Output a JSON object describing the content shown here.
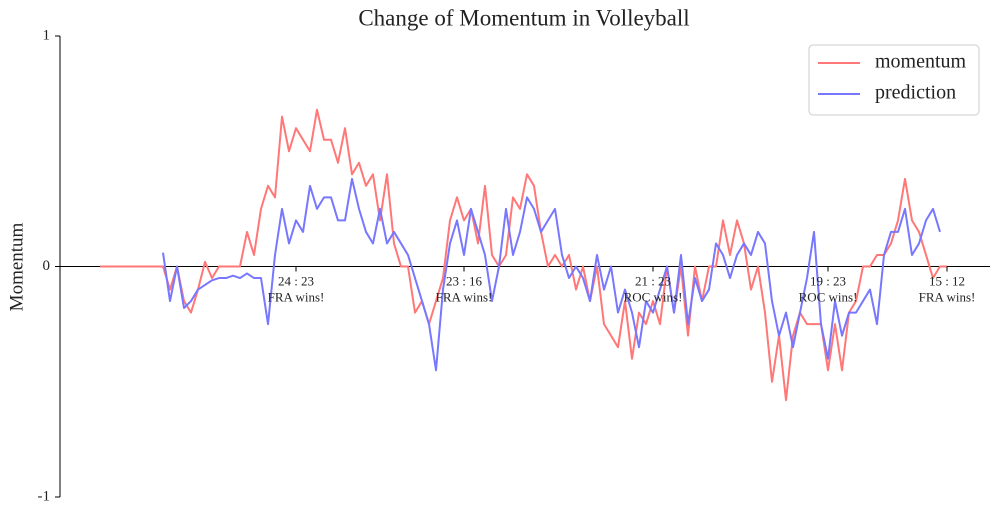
{
  "chart_data": {
    "type": "line",
    "title": "Change of Momentum in Volleyball",
    "y_label": "Momentum",
    "ylim": [
      -1,
      1
    ],
    "yticks": [
      -1,
      0,
      1
    ],
    "legend": "upper right",
    "series": [
      {
        "name": "momentum",
        "color": "#ff7777",
        "values": [
          0,
          0,
          0,
          0,
          0,
          0,
          0,
          0,
          0,
          0,
          -0.1,
          0,
          -0.15,
          -0.2,
          -0.1,
          0.02,
          -0.05,
          0,
          0,
          0,
          0,
          0.15,
          0.05,
          0.25,
          0.35,
          0.3,
          0.65,
          0.5,
          0.6,
          0.55,
          0.5,
          0.68,
          0.55,
          0.55,
          0.45,
          0.6,
          0.4,
          0.45,
          0.35,
          0.4,
          0.2,
          0.4,
          0.1,
          0,
          0,
          -0.2,
          -0.15,
          -0.25,
          -0.15,
          -0.05,
          0.2,
          0.3,
          0.2,
          0.25,
          0.1,
          0.35,
          0.05,
          0,
          0.05,
          0.3,
          0.25,
          0.4,
          0.35,
          0.15,
          0,
          0.05,
          0,
          0.05,
          -0.1,
          0,
          -0.15,
          0,
          -0.25,
          -0.3,
          -0.35,
          -0.15,
          -0.4,
          -0.2,
          -0.25,
          -0.15,
          -0.25,
          0,
          -0.2,
          0,
          -0.3,
          0,
          -0.15,
          0,
          0,
          0.2,
          0.05,
          0.2,
          0.1,
          -0.1,
          0,
          -0.2,
          -0.5,
          -0.3,
          -0.58,
          -0.3,
          -0.2,
          -0.25,
          -0.25,
          -0.25,
          -0.45,
          -0.25,
          -0.45,
          -0.2,
          -0.15,
          0,
          0,
          0.05,
          0.05,
          0.1,
          0.2,
          0.38,
          0.2,
          0.15,
          0.05,
          -0.05,
          0,
          0
        ]
      },
      {
        "name": "prediction",
        "color": "#7777ff",
        "values": [
          null,
          null,
          null,
          null,
          null,
          null,
          null,
          null,
          null,
          0.06,
          -0.15,
          0,
          -0.18,
          -0.15,
          -0.1,
          -0.08,
          -0.06,
          -0.05,
          -0.05,
          -0.04,
          -0.05,
          -0.03,
          -0.05,
          -0.05,
          -0.25,
          0.05,
          0.25,
          0.1,
          0.2,
          0.15,
          0.35,
          0.25,
          0.3,
          0.3,
          0.2,
          0.2,
          0.38,
          0.25,
          0.15,
          0.1,
          0.25,
          0.1,
          0.15,
          0.1,
          0.05,
          -0.05,
          -0.15,
          -0.25,
          -0.45,
          -0.1,
          0.1,
          0.2,
          0.05,
          0.25,
          0.15,
          0.05,
          -0.15,
          0,
          0.25,
          0.05,
          0.15,
          0.3,
          0.25,
          0.15,
          0.2,
          0.25,
          0.05,
          -0.05,
          0,
          -0.05,
          -0.15,
          0.05,
          -0.1,
          0,
          -0.2,
          -0.1,
          -0.2,
          -0.35,
          -0.15,
          -0.2,
          -0.1,
          0,
          -0.2,
          0.05,
          -0.25,
          -0.05,
          -0.15,
          -0.1,
          0.1,
          0.05,
          -0.05,
          0.05,
          0.1,
          0.05,
          0.15,
          0.1,
          -0.15,
          -0.3,
          -0.2,
          -0.35,
          -0.2,
          -0.05,
          0.15,
          -0.25,
          -0.4,
          -0.15,
          -0.3,
          -0.2,
          -0.2,
          -0.15,
          -0.1,
          -0.25,
          0.05,
          0.15,
          0.15,
          0.25,
          0.05,
          0.1,
          0.2,
          0.25,
          0.15,
          null
        ]
      }
    ],
    "annotations": [
      {
        "score": "24 : 23",
        "result": "FRA wins!"
      },
      {
        "score": "23 : 16",
        "result": "FRA wins!"
      },
      {
        "score": "21 : 23",
        "result": "ROC wins!"
      },
      {
        "score": "19 : 23",
        "result": "ROC wins!"
      },
      {
        "score": "15 : 12",
        "result": "FRA wins!"
      }
    ]
  }
}
